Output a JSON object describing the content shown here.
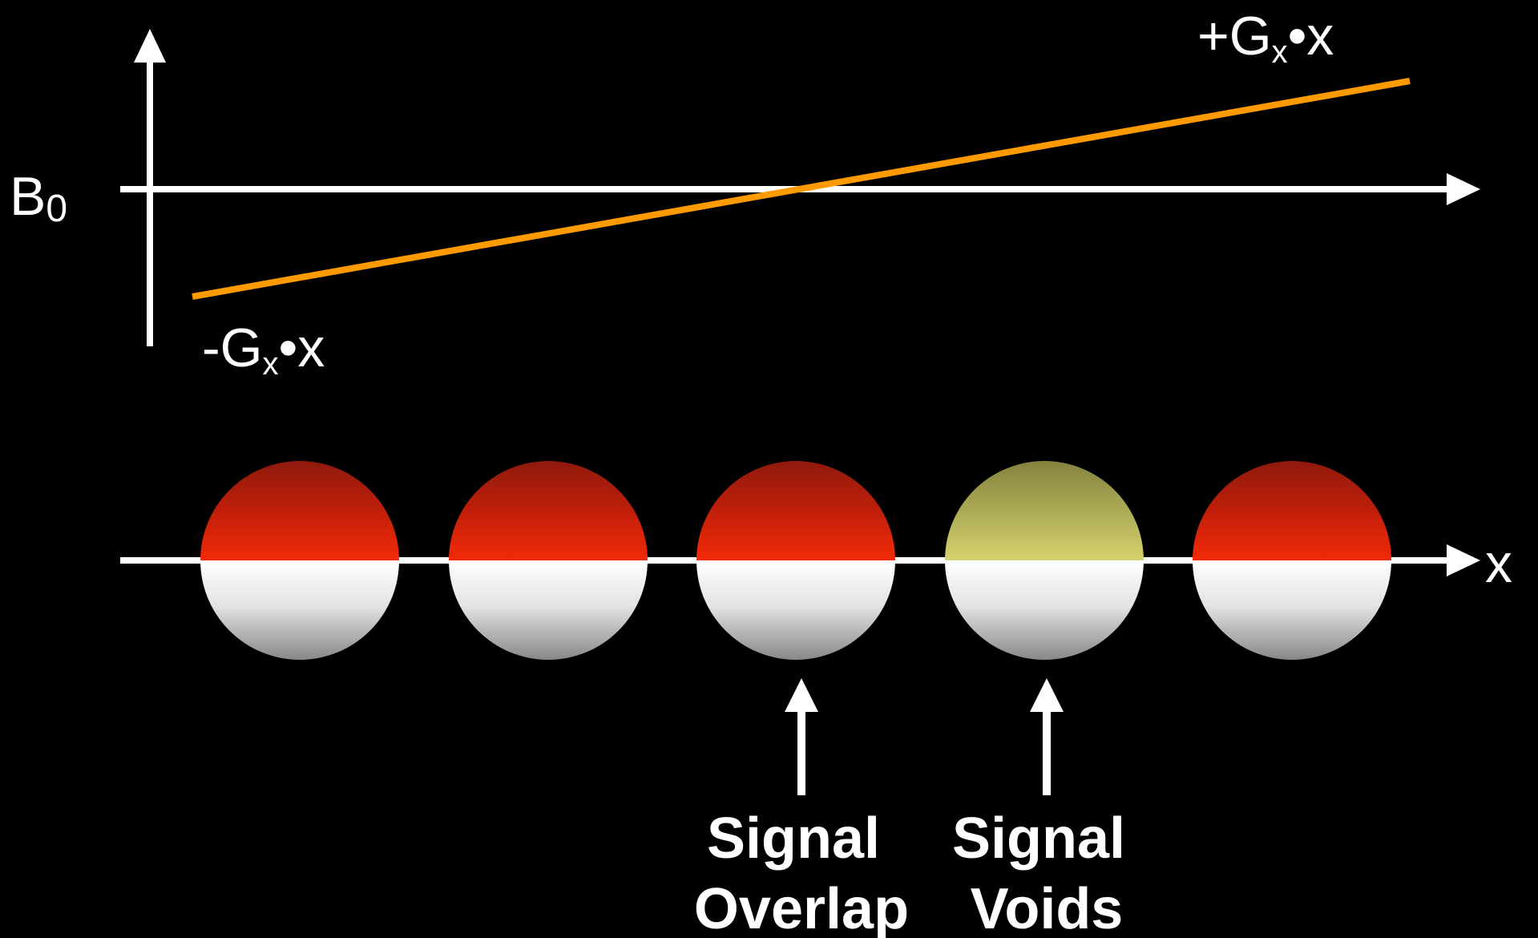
{
  "diagram": {
    "field_axis_label": {
      "base": "B",
      "sub": "0"
    },
    "gradient_high_label": {
      "pre": "+G",
      "sub": "x",
      "post": "•x"
    },
    "gradient_low_label": {
      "pre": "-G",
      "sub": "x",
      "post": "•x"
    },
    "position_axis_label": "x",
    "callouts": [
      {
        "line1": "Signal",
        "line2": "Overlap"
      },
      {
        "line1": "Signal",
        "line2": "Voids"
      }
    ],
    "colors": {
      "background": "#000000",
      "axes": "#ffffff",
      "gradient_line": "#ff9a00",
      "sphere_red_top": "#8e1a0c",
      "sphere_red_bottom": "#f22a08",
      "sphere_yellow_top": "#85823f",
      "sphere_yellow_bottom": "#d4d26c",
      "sphere_lower_top": "#ffffff",
      "sphere_lower_bottom": "#888888"
    },
    "spheres": [
      "red",
      "red",
      "red",
      "yellow",
      "red"
    ]
  }
}
